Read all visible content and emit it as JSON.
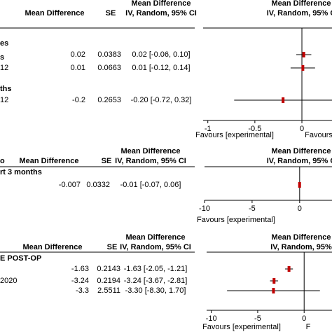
{
  "chart_data": [
    {
      "type": "forest",
      "header_top": "Mean Difference",
      "headers": {
        "md": "Mean Difference",
        "se": "SE",
        "ci": "IV, Random, 95% CI"
      },
      "plot_header": [
        "Mean Difference",
        "IV, Random, 95% C"
      ],
      "groups": [
        {
          "name": "es",
          "rows": [
            {
              "md": 0.02,
              "se": 0.0383,
              "ci_label": "0.02 [-0.06, 0.10]",
              "ci": [
                -0.06,
                0.1
              ]
            }
          ]
        },
        {
          "name": "s",
          "rows": [
            {
              "label": "12",
              "md": 0.01,
              "se": 0.0663,
              "ci_label": "0.01 [-0.12, 0.14]",
              "ci": [
                -0.12,
                0.14
              ]
            }
          ]
        },
        {
          "name": "ths",
          "rows": [
            {
              "label": "12",
              "md": -0.2,
              "se": 0.2653,
              "ci_label": "-0.20 [-0.72, 0.32]",
              "ci": [
                -0.72,
                0.32
              ]
            }
          ]
        }
      ],
      "xlim": [
        -1.05,
        0.32
      ],
      "xticks": [
        -1,
        -0.5,
        0
      ],
      "favours": [
        "Favours [experimental]",
        "Favours"
      ]
    },
    {
      "type": "forest",
      "header_top": "Mean Difference",
      "corner": "o",
      "headers": {
        "md": "Mean Difference",
        "se": "SE",
        "ci": "IV, Random, 95% CI"
      },
      "plot_header": [
        "Mean Difference",
        "IV, Random, 95% C"
      ],
      "groups": [
        {
          "name": "rt 3 months",
          "rows": [
            {
              "md": -0.007,
              "se": 0.0332,
              "ci_label": "-0.01 [-0.07, 0.06]",
              "ci": [
                -0.07,
                0.06
              ]
            }
          ]
        }
      ],
      "xlim": [
        -10,
        3.4
      ],
      "xticks": [
        -10,
        -5,
        0
      ],
      "favours": [
        "Favours [experimental]"
      ]
    },
    {
      "type": "forest",
      "header_top": "Mean Difference",
      "headers": {
        "md": "Mean Difference",
        "se": "SE",
        "ci": "IV, Random, 95% CI"
      },
      "plot_header": [
        "Mean Difference",
        "IV, Random, 95%"
      ],
      "groups": [
        {
          "name": "E POST-OP",
          "rows": [
            {
              "md": -1.63,
              "se": 0.2143,
              "ci_label": "-1.63 [-2.05, -1.21]",
              "ci": [
                -2.05,
                -1.21
              ]
            },
            {
              "label": "2020",
              "md": -3.24,
              "se": 0.2194,
              "ci_label": "-3.24 [-3.67, -2.81]",
              "ci": [
                -3.67,
                -2.81
              ]
            },
            {
              "md": -3.3,
              "se": 2.5511,
              "ci_label": "-3.30 [-8.30, 1.70]",
              "ci": [
                -8.3,
                1.7
              ]
            }
          ]
        }
      ],
      "xlim": [
        -10.5,
        3
      ],
      "xticks": [
        -10,
        -5,
        0
      ],
      "favours": [
        "Favours [experimental]",
        "F"
      ]
    }
  ]
}
